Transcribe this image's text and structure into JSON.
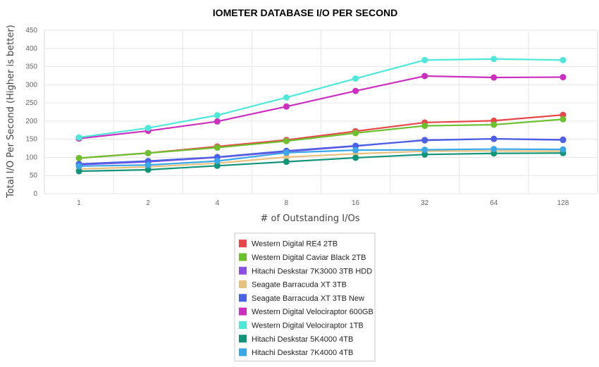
{
  "chart_data": {
    "type": "line",
    "title": "IOMETER DATABASE I/O PER SECOND",
    "xlabel": "# of Outstanding I/Os",
    "ylabel": "Total I/O Per Second (Higher is better)",
    "categories": [
      "1",
      "2",
      "4",
      "8",
      "16",
      "32",
      "64",
      "128"
    ],
    "ylim": [
      0,
      450
    ],
    "yticks": [
      "0",
      "50",
      "100",
      "150",
      "200",
      "250",
      "300",
      "350",
      "400",
      "450"
    ],
    "grid": true,
    "legend_position": "bottom-center",
    "series": [
      {
        "name": "Western Digital RE4 2TB",
        "color": "#e8474a",
        "values": [
          98,
          112,
          130,
          148,
          172,
          196,
          201,
          217
        ]
      },
      {
        "name": "Western Digital Caviar Black 2TB",
        "color": "#6cc02e",
        "values": [
          98,
          112,
          127,
          145,
          167,
          187,
          190,
          205
        ]
      },
      {
        "name": "Hitachi Deskstar 7K3000 3TB HDD",
        "color": "#8a4fe3",
        "values": [
          80,
          88,
          100,
          116,
          131,
          148,
          151,
          149
        ]
      },
      {
        "name": "Seagate Barracuda XT 3TB",
        "color": "#e8c07d",
        "values": [
          68,
          74,
          84,
          101,
          110,
          117,
          118,
          117
        ]
      },
      {
        "name": "Seagate Barracuda XT 3TB New",
        "color": "#4b61e3",
        "values": [
          82,
          90,
          101,
          118,
          132,
          147,
          151,
          148
        ]
      },
      {
        "name": "Western Digital Velociraptor 600GB",
        "color": "#cc2fbf",
        "values": [
          152,
          173,
          199,
          240,
          283,
          324,
          320,
          321
        ]
      },
      {
        "name": "Western Digital Velociraptor 1TB",
        "color": "#4de8d8",
        "values": [
          155,
          181,
          216,
          265,
          317,
          368,
          371,
          368
        ]
      },
      {
        "name": "Hitachi Deskstar 5K4000 4TB",
        "color": "#119477",
        "values": [
          62,
          66,
          77,
          88,
          99,
          108,
          111,
          112
        ]
      },
      {
        "name": "Hitachi Deskstar 7K4000 4TB",
        "color": "#3aa8e8",
        "values": [
          76,
          79,
          90,
          113,
          120,
          121,
          123,
          122
        ]
      }
    ]
  }
}
